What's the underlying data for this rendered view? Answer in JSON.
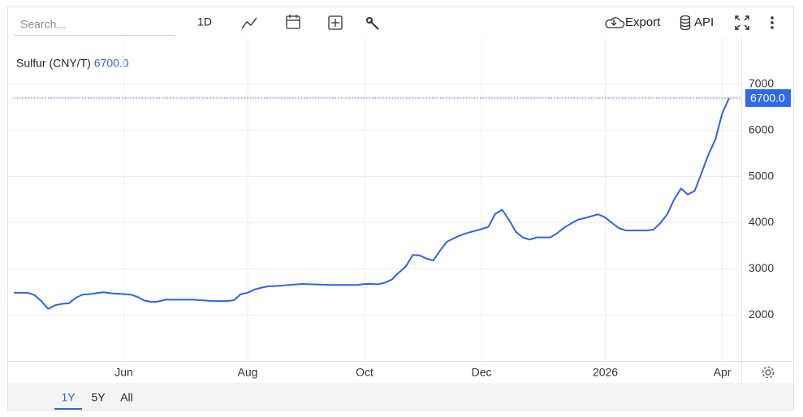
{
  "toolbar": {
    "search_placeholder": "Search...",
    "interval": "1D",
    "export": "Export",
    "api": "API"
  },
  "range_buttons": [
    "1Y",
    "5Y",
    "All"
  ],
  "active_range": "1Y",
  "chart_data": {
    "type": "line",
    "series": [
      {
        "name": "Sulfur (CNY/T)",
        "color": "#2f65d8",
        "values": [
          2480,
          2480,
          2480,
          2430,
          2300,
          2130,
          2210,
          2240,
          2250,
          2370,
          2440,
          2450,
          2470,
          2490,
          2470,
          2460,
          2450,
          2440,
          2390,
          2310,
          2280,
          2290,
          2330,
          2330,
          2330,
          2330,
          2330,
          2320,
          2310,
          2300,
          2300,
          2300,
          2320,
          2450,
          2480,
          2550,
          2590,
          2620,
          2625,
          2635,
          2650,
          2660,
          2670,
          2665,
          2660,
          2655,
          2650,
          2650,
          2650,
          2650,
          2650,
          2670,
          2670,
          2665,
          2700,
          2770,
          2920,
          3050,
          3300,
          3290,
          3220,
          3180,
          3400,
          3590,
          3660,
          3730,
          3780,
          3820,
          3860,
          3910,
          4190,
          4280,
          4060,
          3800,
          3680,
          3630,
          3680,
          3680,
          3680,
          3770,
          3890,
          3980,
          4060,
          4100,
          4140,
          4180,
          4110,
          3990,
          3880,
          3830,
          3830,
          3830,
          3830,
          3850,
          3990,
          4180,
          4500,
          4740,
          4610,
          4690,
          5080,
          5480,
          5800,
          6370,
          6700
        ]
      }
    ],
    "categories": [
      null,
      null,
      null,
      null,
      null,
      null,
      null,
      null,
      null,
      null,
      null,
      null,
      null,
      null,
      null,
      null,
      "Jun",
      null,
      null,
      null,
      null,
      null,
      null,
      null,
      null,
      null,
      null,
      null,
      null,
      null,
      null,
      null,
      null,
      null,
      "Aug",
      null,
      null,
      null,
      null,
      null,
      null,
      null,
      null,
      null,
      null,
      null,
      null,
      null,
      null,
      null,
      null,
      "Oct",
      null,
      null,
      null,
      null,
      null,
      null,
      null,
      null,
      null,
      null,
      null,
      null,
      null,
      null,
      null,
      null,
      "Dec",
      null,
      null,
      null,
      null,
      null,
      null,
      null,
      null,
      null,
      null,
      null,
      null,
      null,
      null,
      null,
      null,
      null,
      "2026",
      null,
      null,
      null,
      null,
      null,
      null,
      null,
      null,
      null,
      null,
      null,
      null,
      null,
      null,
      null,
      null,
      "Apr",
      null
    ],
    "ylim": [
      1000,
      8000
    ],
    "yticks": [
      2000,
      3000,
      4000,
      5000,
      6000,
      7000
    ],
    "grid": true,
    "last_price": {
      "value": 6700,
      "label": "6700.0"
    }
  }
}
